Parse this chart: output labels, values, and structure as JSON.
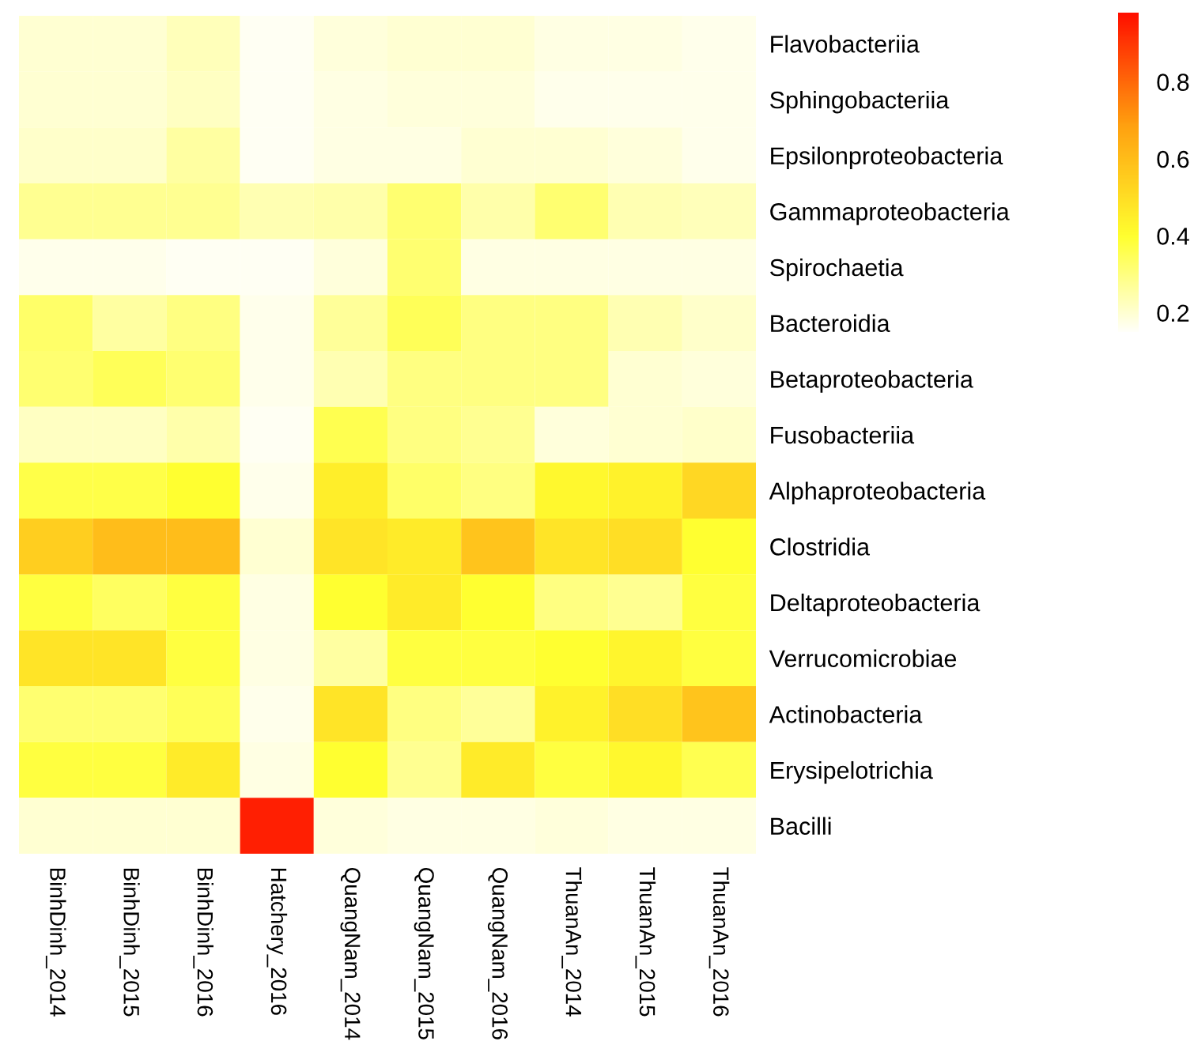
{
  "chart_data": {
    "type": "heatmap",
    "categories": [
      "BinhDinh_2014",
      "BinhDinh_2015",
      "BinhDinh_2016",
      "Hatchery_2016",
      "QuangNam_2014",
      "QuangNam_2015",
      "QuangNam_2016",
      "ThuanAn_2014",
      "ThuanAn_2015",
      "ThuanAn_2016"
    ],
    "y_categories": [
      "Flavobacteriia",
      "Sphingobacteriia",
      "Epsilonproteobacteria",
      "Gammaproteobacteria",
      "Spirochaetia",
      "Bacteroidia",
      "Betaproteobacteria",
      "Fusobacteriia",
      "Alphaproteobacteria",
      "Clostridia",
      "Deltaproteobacteria",
      "Verrucomicrobiae",
      "Actinobacteria",
      "Erysipelotrichia",
      "Bacilli"
    ],
    "cells": [
      [
        0.2,
        0.2,
        0.23,
        0.16,
        0.19,
        0.2,
        0.2,
        0.18,
        0.18,
        0.17
      ],
      [
        0.2,
        0.2,
        0.22,
        0.16,
        0.18,
        0.19,
        0.19,
        0.17,
        0.17,
        0.17
      ],
      [
        0.21,
        0.21,
        0.26,
        0.16,
        0.18,
        0.18,
        0.2,
        0.2,
        0.19,
        0.17
      ],
      [
        0.28,
        0.28,
        0.28,
        0.24,
        0.25,
        0.32,
        0.25,
        0.32,
        0.24,
        0.23
      ],
      [
        0.17,
        0.17,
        0.16,
        0.16,
        0.19,
        0.32,
        0.18,
        0.18,
        0.18,
        0.18
      ],
      [
        0.33,
        0.26,
        0.3,
        0.17,
        0.27,
        0.35,
        0.3,
        0.3,
        0.24,
        0.21
      ],
      [
        0.32,
        0.35,
        0.32,
        0.17,
        0.24,
        0.3,
        0.3,
        0.3,
        0.2,
        0.19
      ],
      [
        0.22,
        0.22,
        0.25,
        0.16,
        0.36,
        0.3,
        0.28,
        0.19,
        0.2,
        0.21
      ],
      [
        0.37,
        0.37,
        0.4,
        0.17,
        0.45,
        0.33,
        0.3,
        0.42,
        0.44,
        0.52
      ],
      [
        0.55,
        0.6,
        0.6,
        0.2,
        0.48,
        0.46,
        0.58,
        0.48,
        0.5,
        0.4
      ],
      [
        0.38,
        0.34,
        0.38,
        0.18,
        0.4,
        0.46,
        0.4,
        0.3,
        0.28,
        0.38
      ],
      [
        0.48,
        0.48,
        0.38,
        0.18,
        0.26,
        0.38,
        0.38,
        0.4,
        0.43,
        0.38
      ],
      [
        0.32,
        0.32,
        0.35,
        0.17,
        0.48,
        0.3,
        0.27,
        0.44,
        0.5,
        0.58
      ],
      [
        0.38,
        0.38,
        0.46,
        0.18,
        0.4,
        0.28,
        0.46,
        0.38,
        0.42,
        0.36
      ],
      [
        0.2,
        0.2,
        0.2,
        0.95,
        0.19,
        0.18,
        0.18,
        0.19,
        0.18,
        0.18
      ]
    ],
    "clim": [
      0.15,
      0.98
    ],
    "cticks": [
      0.2,
      0.4,
      0.6,
      0.8
    ]
  }
}
